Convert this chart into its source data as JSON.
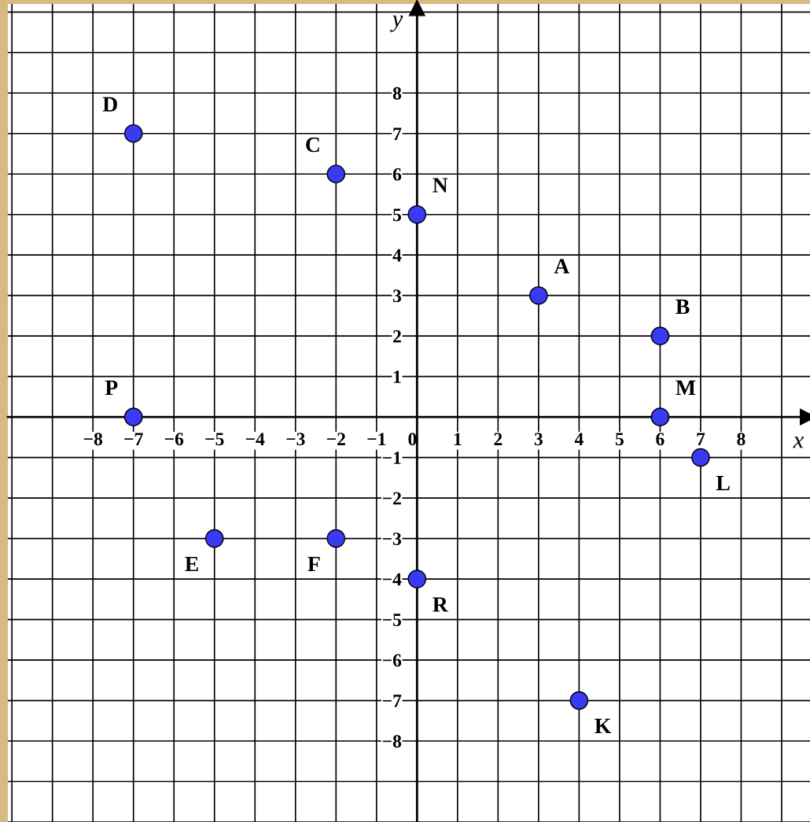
{
  "chart_data": {
    "type": "scatter",
    "xlabel": "x",
    "ylabel": "y",
    "series": [
      {
        "color": "#3a3af5",
        "x": [
          -7,
          -2,
          0,
          3,
          6,
          -7,
          6,
          7,
          -5,
          -2,
          0,
          4
        ],
        "values": [
          7,
          6,
          5,
          3,
          2,
          0,
          0,
          -1,
          -3,
          -3,
          -4,
          -7
        ]
      }
    ],
    "annotations": [
      {
        "text": "D",
        "x": -7,
        "y": 7
      },
      {
        "text": "C",
        "x": -2,
        "y": 6
      },
      {
        "text": "N",
        "x": 0,
        "y": 5
      },
      {
        "text": "A",
        "x": 3,
        "y": 3
      },
      {
        "text": "B",
        "x": 6,
        "y": 2
      },
      {
        "text": "P",
        "x": -7,
        "y": 0
      },
      {
        "text": "M",
        "x": 6,
        "y": 0
      },
      {
        "text": "L",
        "x": 7,
        "y": -1
      },
      {
        "text": "E",
        "x": -5,
        "y": -3
      },
      {
        "text": "F",
        "x": -2,
        "y": -3
      },
      {
        "text": "R",
        "x": 0,
        "y": -4
      },
      {
        "text": "K",
        "x": 4,
        "y": -7
      }
    ],
    "xlim": [
      -10.1,
      9.7
    ],
    "ylim": [
      -10,
      10.2
    ],
    "xticks": [
      {
        "value": -10,
        "label": null
      },
      {
        "value": -9,
        "label": null
      },
      {
        "value": -8,
        "label": "−8"
      },
      {
        "value": -7,
        "label": "−7"
      },
      {
        "value": -6,
        "label": "−6"
      },
      {
        "value": -5,
        "label": "−5"
      },
      {
        "value": -4,
        "label": "−4"
      },
      {
        "value": -3,
        "label": "−3"
      },
      {
        "value": -2,
        "label": "−2"
      },
      {
        "value": -1,
        "label": "−1"
      },
      0,
      1,
      2,
      3,
      4,
      5,
      6,
      7,
      8,
      {
        "value": 9,
        "label": null
      }
    ],
    "yticks": [
      {
        "value": -10,
        "label": null
      },
      {
        "value": -9,
        "label": null
      },
      {
        "value": -8,
        "label": "−8"
      },
      {
        "value": -7,
        "label": "−7"
      },
      {
        "value": -6,
        "label": "−6"
      },
      {
        "value": -5,
        "label": "−5"
      },
      {
        "value": -4,
        "label": "−4"
      },
      {
        "value": -3,
        "label": "−3"
      },
      {
        "value": -2,
        "label": "−2"
      },
      {
        "value": -1,
        "label": "−1"
      },
      1,
      2,
      3,
      4,
      5,
      6,
      7,
      8,
      {
        "value": 9,
        "label": null
      },
      {
        "value": 10,
        "label": null
      }
    ],
    "grid": true,
    "marker": "circle",
    "legend": false
  }
}
